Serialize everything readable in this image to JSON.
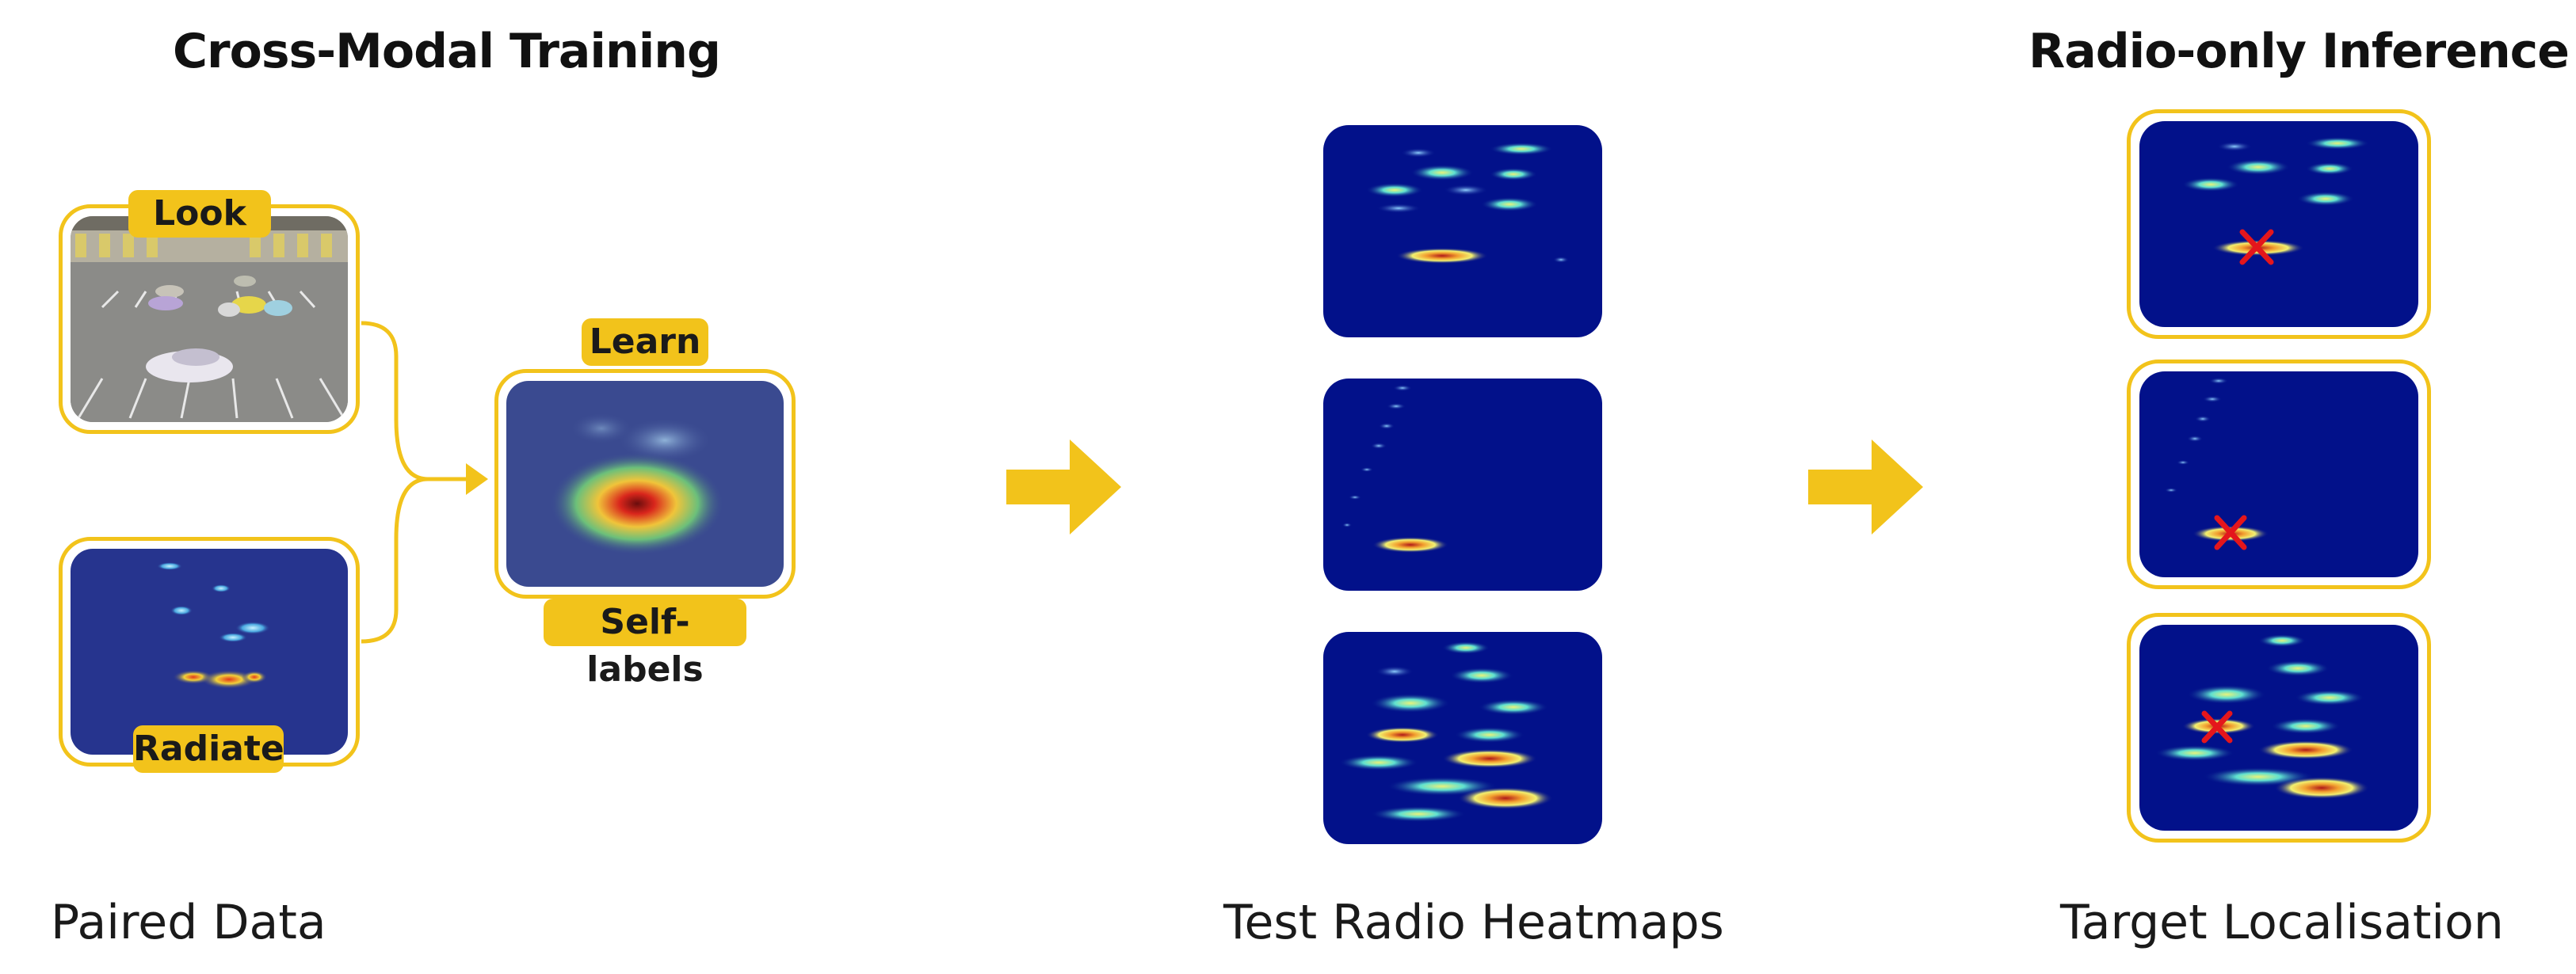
{
  "sections": {
    "training_title": "Cross-Modal Training",
    "inference_title": "Radio-only Inference"
  },
  "tags": {
    "look": "Look",
    "radiate": "Radiate",
    "learn": "Learn",
    "self_labels": "Self-labels"
  },
  "captions": {
    "paired_data": "Paired Data",
    "test_heatmaps": "Test Radio Heatmaps",
    "target_localisation": "Target Localisation"
  },
  "colors": {
    "accent": "#f2c31b",
    "heatmap_bg": "#02118a",
    "marker": "#e4161c"
  },
  "icons": {
    "flow_arrow": "right-arrow-icon",
    "target_marker": "x-marker-icon"
  }
}
